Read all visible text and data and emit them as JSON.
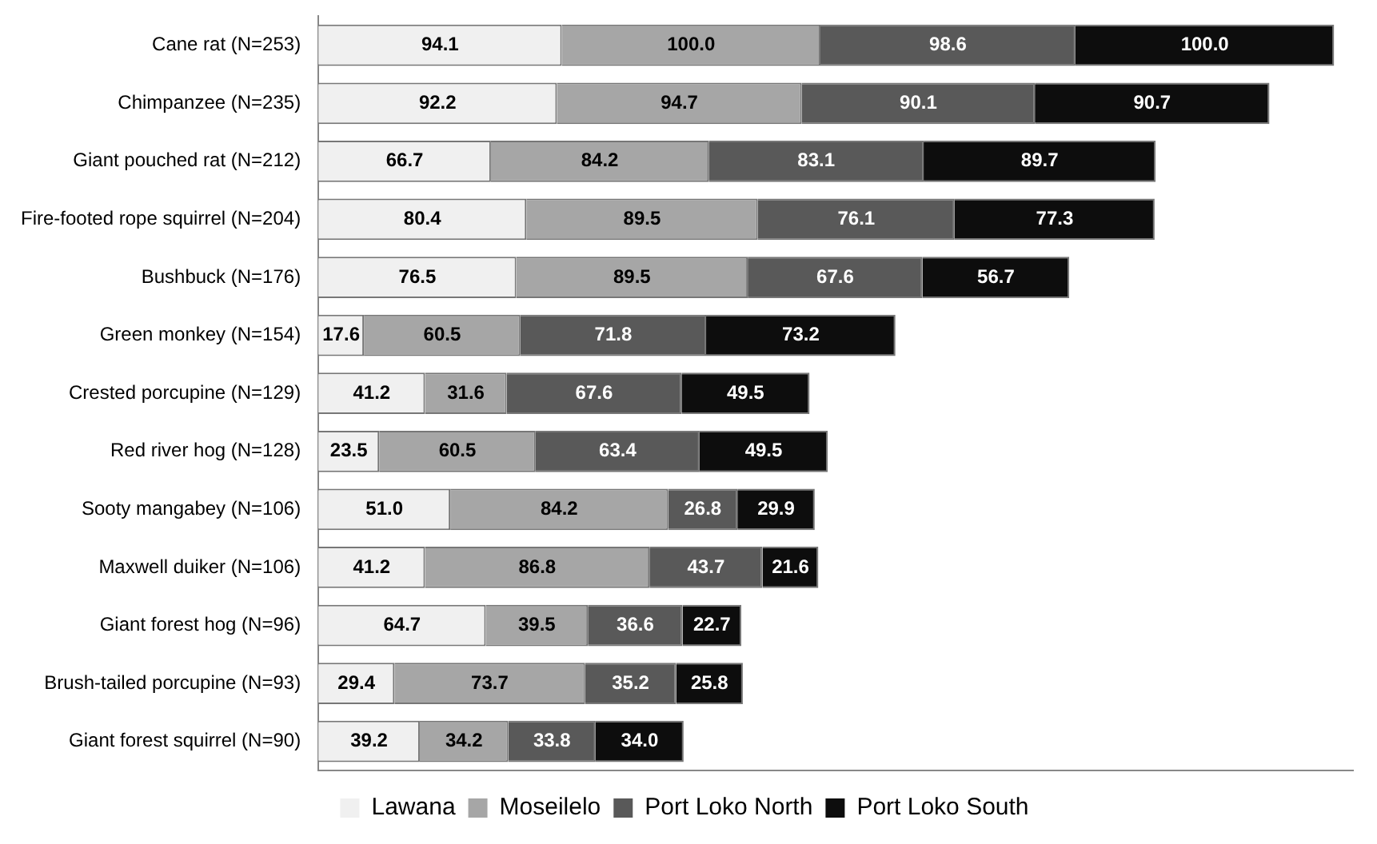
{
  "chart_data": {
    "type": "bar",
    "orientation": "horizontal",
    "stacked": true,
    "legend": "bottom",
    "grid": false,
    "tick_labels": "y",
    "xlim": [
      0,
      400
    ],
    "categories": [
      "Cane rat (N=253)",
      "Chimpanzee (N=235)",
      "Giant pouched rat (N=212)",
      "Fire-footed rope squirrel (N=204)",
      "Bushbuck (N=176)",
      "Green monkey (N=154)",
      "Crested porcupine (N=129)",
      "Red river hog (N=128)",
      "Sooty mangabey (N=106)",
      "Maxwell duiker (N=106)",
      "Giant forest hog (N=96)",
      "Brush-tailed porcupine (N=93)",
      "Giant forest squirrel (N=90)"
    ],
    "series": [
      {
        "name": "Lawana",
        "color": "#f0f0f0",
        "values": [
          94.1,
          92.2,
          66.7,
          80.4,
          76.5,
          17.6,
          41.2,
          23.5,
          51.0,
          41.2,
          64.7,
          29.4,
          39.2
        ],
        "value_labels": [
          "94.1",
          "92.2",
          "66.7",
          "80.4",
          "76.5",
          "17.6",
          "41.2",
          "23.5",
          "51.0",
          "41.2",
          "64.7",
          "29.4",
          "39.2"
        ]
      },
      {
        "name": "Moseilelo",
        "color": "#a6a6a6",
        "values": [
          100.0,
          94.7,
          84.2,
          89.5,
          89.5,
          60.5,
          31.6,
          60.5,
          84.2,
          86.8,
          39.5,
          73.7,
          34.2
        ],
        "value_labels": [
          "100.0",
          "94.7",
          "84.2",
          "89.5",
          "89.5",
          "60.5",
          "31.6",
          "60.5",
          "84.2",
          "86.8",
          "39.5",
          "73.7",
          "34.2"
        ]
      },
      {
        "name": "Port Loko North",
        "color": "#595959",
        "values": [
          98.6,
          90.1,
          83.1,
          76.1,
          67.6,
          71.8,
          67.6,
          63.4,
          26.8,
          43.7,
          36.6,
          35.2,
          33.8
        ],
        "value_labels": [
          "98.6",
          "90.1",
          "83.1",
          "76.1",
          "67.6",
          "71.8",
          "67.6",
          "63.4",
          "26.8",
          "43.7",
          "36.6",
          "35.2",
          "33.8"
        ]
      },
      {
        "name": "Port Loko South",
        "color": "#0d0d0d",
        "values": [
          100.0,
          90.7,
          89.7,
          77.3,
          56.7,
          73.2,
          49.5,
          49.5,
          29.9,
          21.6,
          22.7,
          25.8,
          34.0
        ],
        "value_labels": [
          "100.0",
          "90.7",
          "89.7",
          "77.3",
          "56.7",
          "73.2",
          "49.5",
          "49.5",
          "29.9",
          "21.6",
          "22.7",
          "25.8",
          "34.0"
        ]
      }
    ]
  }
}
